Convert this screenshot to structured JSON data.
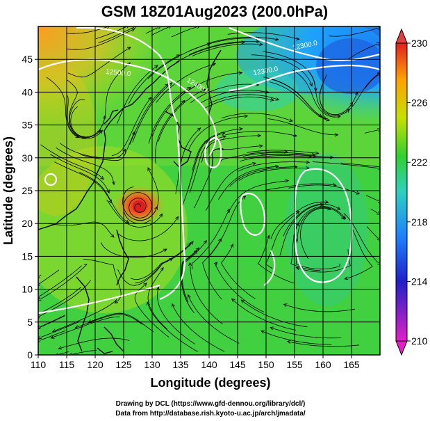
{
  "title": "GSM 18Z01Aug2023 (200.0hPa)",
  "chart_data": {
    "type": "heatmap",
    "title": "GSM 18Z01Aug2023 (200.0hPa)",
    "xlabel": "Longitude (degrees)",
    "ylabel": "Latitude  (degrees)",
    "xlim": [
      110,
      170
    ],
    "ylim": [
      0,
      50
    ],
    "x_ticks": [
      "110",
      "115",
      "120",
      "125",
      "130",
      "135",
      "140",
      "145",
      "150",
      "155",
      "160",
      "165"
    ],
    "y_ticks": [
      "0",
      "5",
      "10",
      "15",
      "20",
      "25",
      "30",
      "35",
      "40",
      "45"
    ],
    "grid": true,
    "colorbar": {
      "range": [
        210,
        230
      ],
      "tick_labels": [
        "230",
        "226",
        "222",
        "218",
        "214",
        "210"
      ],
      "colors": [
        "#e020c8",
        "#2020c8",
        "#1ea0ff",
        "#2ed0c0",
        "#30d030",
        "#c8e000",
        "#ffa000",
        "#e02020"
      ]
    },
    "contour_labels": [
      "12300.0",
      "12400.0",
      "12500.0"
    ],
    "features": [
      "typhoon near 26N 127E",
      "streamlines of 200hPa wind",
      "coastlines of East Asia"
    ]
  },
  "credits": {
    "line1": "Drawing by DCL (https://www.gfd-dennou.org/library/dcl/)",
    "line2": "Data from http://database.rish.kyoto-u.ac.jp/arch/jmadata/"
  }
}
